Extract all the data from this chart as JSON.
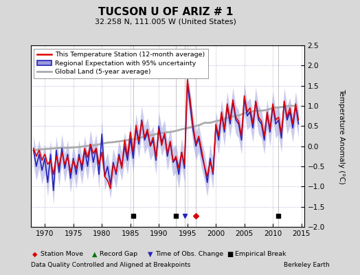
{
  "title": "TUCSON U OF ARIZ # 1",
  "subtitle": "32.258 N, 111.005 W (United States)",
  "ylabel": "Temperature Anomaly (°C)",
  "xlabel_left": "Data Quality Controlled and Aligned at Breakpoints",
  "xlabel_right": "Berkeley Earth",
  "ylim": [
    -2.0,
    2.5
  ],
  "xlim": [
    1967.5,
    2015.5
  ],
  "xticks": [
    1970,
    1975,
    1980,
    1985,
    1990,
    1995,
    2000,
    2005,
    2010,
    2015
  ],
  "yticks": [
    -2.0,
    -1.5,
    -1.0,
    -0.5,
    0.0,
    0.5,
    1.0,
    1.5,
    2.0,
    2.5
  ],
  "bg_color": "#d8d8d8",
  "plot_bg_color": "#ffffff",
  "grid_color": "#aaaacc",
  "station_color": "#dd0000",
  "regional_color": "#2222bb",
  "regional_fill_color": "#9999dd",
  "global_color": "#aaaaaa",
  "global_lw": 2.0,
  "station_lw": 1.2,
  "regional_lw": 1.2,
  "markers": {
    "empirical_breaks": [
      1985.5,
      1993.0,
      2011.0
    ],
    "station_moves": [
      1996.5
    ],
    "obs_changes": [
      1994.5
    ],
    "record_gaps": []
  },
  "station_data": {
    "years": [
      1968.0,
      1968.5,
      1969.0,
      1969.5,
      1970.0,
      1970.5,
      1971.0,
      1971.5,
      1972.0,
      1972.5,
      1973.0,
      1973.5,
      1974.0,
      1974.5,
      1975.0,
      1975.5,
      1976.0,
      1976.5,
      1977.0,
      1977.5,
      1978.0,
      1978.5,
      1979.0,
      1979.5,
      1980.0,
      1980.5,
      1981.0,
      1981.5,
      1982.0,
      1982.5,
      1983.0,
      1983.5,
      1984.0,
      1984.5,
      1985.0,
      1985.5,
      1986.0,
      1986.5,
      1987.0,
      1987.5,
      1988.0,
      1988.5,
      1989.0,
      1989.5,
      1990.0,
      1990.5,
      1991.0,
      1991.5,
      1992.0,
      1992.5,
      1993.0,
      1993.5,
      1994.0,
      1994.5,
      1995.0,
      1995.5,
      1996.0,
      1996.5,
      1997.0,
      1997.5,
      1998.0,
      1998.5,
      1999.0,
      1999.5,
      2000.0,
      2000.5,
      2001.0,
      2001.5,
      2002.0,
      2002.5,
      2003.0,
      2003.5,
      2004.0,
      2004.5,
      2005.0,
      2005.5,
      2006.0,
      2006.5,
      2007.0,
      2007.5,
      2008.0,
      2008.5,
      2009.0,
      2009.5,
      2010.0,
      2010.5,
      2011.0,
      2011.5,
      2012.0,
      2012.5,
      2013.0,
      2013.5,
      2014.0,
      2014.5
    ],
    "values": [
      -0.05,
      -0.25,
      -0.1,
      -0.35,
      -0.2,
      -0.45,
      -0.35,
      -0.7,
      -0.25,
      -0.5,
      -0.15,
      -0.45,
      -0.25,
      -0.65,
      -0.35,
      -0.55,
      -0.28,
      -0.48,
      -0.05,
      -0.28,
      0.05,
      -0.18,
      -0.05,
      -0.45,
      -0.15,
      -0.75,
      -0.85,
      -1.05,
      -0.45,
      -0.65,
      -0.25,
      -0.55,
      0.15,
      -0.25,
      0.35,
      -0.15,
      0.52,
      0.12,
      0.62,
      0.22,
      0.42,
      0.02,
      0.22,
      -0.28,
      0.42,
      0.02,
      0.32,
      -0.18,
      0.12,
      -0.38,
      -0.25,
      -0.55,
      -0.15,
      -0.45,
      1.65,
      1.15,
      0.5,
      0.05,
      0.25,
      -0.1,
      -0.5,
      -0.75,
      -0.38,
      -0.65,
      0.55,
      0.25,
      0.85,
      0.42,
      1.05,
      0.65,
      1.15,
      0.72,
      0.62,
      0.25,
      1.25,
      0.85,
      0.95,
      0.55,
      1.12,
      0.72,
      0.62,
      0.25,
      0.85,
      0.42,
      1.05,
      0.65,
      0.72,
      0.32,
      1.12,
      0.72,
      0.95,
      0.55,
      1.05,
      0.65
    ]
  },
  "regional_data": {
    "years": [
      1968.0,
      1968.5,
      1969.0,
      1969.5,
      1970.0,
      1970.5,
      1971.0,
      1971.5,
      1972.0,
      1972.5,
      1973.0,
      1973.5,
      1974.0,
      1974.5,
      1975.0,
      1975.5,
      1976.0,
      1976.5,
      1977.0,
      1977.5,
      1978.0,
      1978.5,
      1979.0,
      1979.5,
      1980.0,
      1980.5,
      1981.0,
      1981.5,
      1982.0,
      1982.5,
      1983.0,
      1983.5,
      1984.0,
      1984.5,
      1985.0,
      1985.5,
      1986.0,
      1986.5,
      1987.0,
      1987.5,
      1988.0,
      1988.5,
      1989.0,
      1989.5,
      1990.0,
      1990.5,
      1991.0,
      1991.5,
      1992.0,
      1992.5,
      1993.0,
      1993.5,
      1994.0,
      1994.5,
      1995.0,
      1995.5,
      1996.0,
      1996.5,
      1997.0,
      1997.5,
      1998.0,
      1998.5,
      1999.0,
      1999.5,
      2000.0,
      2000.5,
      2001.0,
      2001.5,
      2002.0,
      2002.5,
      2003.0,
      2003.5,
      2004.0,
      2004.5,
      2005.0,
      2005.5,
      2006.0,
      2006.5,
      2007.0,
      2007.5,
      2008.0,
      2008.5,
      2009.0,
      2009.5,
      2010.0,
      2010.5,
      2011.0,
      2011.5,
      2012.0,
      2012.5,
      2013.0,
      2013.5,
      2014.0,
      2014.5
    ],
    "values": [
      -0.1,
      -0.5,
      -0.2,
      -0.6,
      -0.3,
      -0.9,
      -0.2,
      -1.1,
      -0.1,
      -0.65,
      -0.05,
      -0.55,
      -0.2,
      -0.8,
      -0.3,
      -0.7,
      -0.2,
      -0.6,
      -0.1,
      -0.5,
      0.05,
      -0.4,
      -0.05,
      -0.7,
      0.3,
      -0.75,
      -0.5,
      -0.95,
      -0.4,
      -0.7,
      -0.2,
      -0.5,
      0.0,
      -0.35,
      0.2,
      -0.3,
      0.45,
      0.05,
      0.65,
      0.15,
      0.35,
      0.0,
      0.15,
      -0.35,
      0.5,
      0.1,
      0.3,
      -0.25,
      0.1,
      -0.4,
      -0.3,
      -0.7,
      -0.15,
      -0.55,
      1.55,
      1.0,
      0.4,
      0.0,
      0.2,
      -0.2,
      -0.5,
      -0.9,
      -0.3,
      -0.7,
      0.5,
      0.15,
      0.8,
      0.35,
      1.0,
      0.55,
      1.1,
      0.65,
      0.55,
      0.15,
      1.2,
      0.75,
      0.85,
      0.45,
      1.1,
      0.65,
      0.55,
      0.15,
      0.8,
      0.35,
      1.0,
      0.55,
      0.65,
      0.2,
      1.1,
      0.65,
      0.85,
      0.45,
      1.0,
      0.55
    ],
    "upper": [
      0.25,
      -0.15,
      0.15,
      -0.25,
      0.05,
      -0.55,
      0.15,
      -0.75,
      0.25,
      -0.3,
      0.3,
      -0.2,
      0.15,
      -0.45,
      0.05,
      -0.35,
      0.15,
      -0.25,
      0.25,
      -0.15,
      0.4,
      0.0,
      0.3,
      -0.35,
      0.65,
      -0.4,
      -0.15,
      -0.6,
      -0.05,
      -0.35,
      0.15,
      -0.15,
      0.35,
      0.0,
      0.55,
      0.05,
      0.8,
      0.4,
      1.0,
      0.5,
      0.7,
      0.35,
      0.5,
      0.0,
      0.85,
      0.45,
      0.65,
      0.1,
      0.45,
      -0.05,
      0.05,
      -0.35,
      0.2,
      -0.2,
      1.9,
      1.35,
      0.75,
      0.35,
      0.55,
      0.15,
      -0.15,
      -0.55,
      0.05,
      -0.35,
      0.85,
      0.5,
      1.15,
      0.7,
      1.35,
      0.9,
      1.45,
      1.0,
      0.9,
      0.5,
      1.55,
      1.1,
      1.2,
      0.8,
      1.45,
      1.0,
      0.9,
      0.5,
      1.15,
      0.7,
      1.35,
      0.9,
      1.0,
      0.55,
      1.45,
      1.0,
      1.2,
      0.8,
      1.35,
      0.9
    ],
    "lower": [
      -0.45,
      -0.85,
      -0.55,
      -0.95,
      -0.65,
      -1.25,
      -0.55,
      -1.45,
      -0.45,
      -1.0,
      -0.4,
      -0.9,
      -0.55,
      -1.15,
      -0.65,
      -1.05,
      -0.55,
      -0.95,
      -0.45,
      -0.85,
      -0.3,
      -0.8,
      -0.4,
      -1.05,
      -0.05,
      -1.1,
      -0.85,
      -1.3,
      -0.75,
      -1.05,
      -0.55,
      -0.85,
      -0.35,
      -0.7,
      -0.15,
      -0.65,
      0.1,
      -0.3,
      0.3,
      -0.2,
      0.0,
      -0.35,
      -0.2,
      -0.7,
      0.15,
      -0.25,
      -0.05,
      -0.6,
      -0.25,
      -0.75,
      -0.65,
      -1.05,
      -0.5,
      -0.9,
      1.2,
      0.65,
      0.05,
      -0.35,
      -0.15,
      -0.55,
      -0.85,
      -1.25,
      -0.65,
      -1.05,
      0.15,
      -0.2,
      0.45,
      0.0,
      0.65,
      0.2,
      0.75,
      0.3,
      0.2,
      -0.2,
      0.85,
      0.4,
      0.5,
      0.1,
      0.75,
      0.3,
      0.2,
      -0.2,
      0.45,
      0.0,
      0.65,
      0.2,
      0.3,
      -0.15,
      0.75,
      0.3,
      0.5,
      0.1,
      0.65,
      0.2
    ]
  },
  "global_data": {
    "years": [
      1968.0,
      1969.0,
      1970.0,
      1971.0,
      1972.0,
      1973.0,
      1974.0,
      1975.0,
      1976.0,
      1977.0,
      1978.0,
      1979.0,
      1980.0,
      1981.0,
      1982.0,
      1983.0,
      1984.0,
      1985.0,
      1986.0,
      1987.0,
      1988.0,
      1989.0,
      1990.0,
      1991.0,
      1992.0,
      1993.0,
      1994.0,
      1995.0,
      1996.0,
      1997.0,
      1998.0,
      1999.0,
      2000.0,
      2001.0,
      2002.0,
      2003.0,
      2004.0,
      2005.0,
      2006.0,
      2007.0,
      2008.0,
      2009.0,
      2010.0,
      2011.0,
      2012.0,
      2013.0,
      2014.0
    ],
    "values": [
      -0.1,
      -0.08,
      -0.07,
      -0.06,
      -0.05,
      -0.04,
      -0.04,
      -0.03,
      -0.02,
      0.0,
      0.02,
      0.03,
      0.06,
      0.09,
      0.1,
      0.12,
      0.14,
      0.16,
      0.18,
      0.22,
      0.26,
      0.28,
      0.32,
      0.34,
      0.35,
      0.38,
      0.42,
      0.45,
      0.48,
      0.52,
      0.58,
      0.58,
      0.62,
      0.65,
      0.7,
      0.74,
      0.76,
      0.82,
      0.85,
      0.88,
      0.88,
      0.9,
      0.95,
      0.96,
      0.98,
      1.0,
      1.0
    ]
  }
}
